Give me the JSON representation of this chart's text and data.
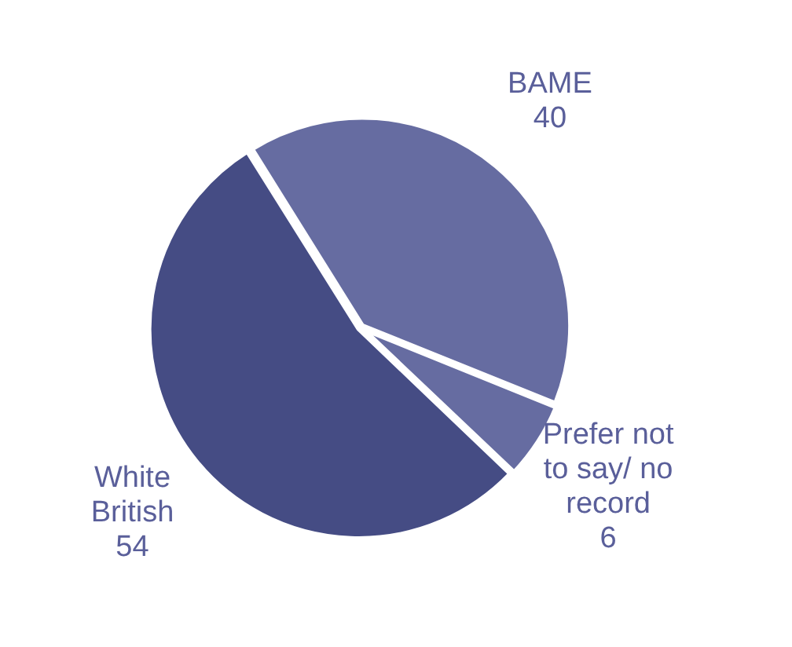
{
  "chart_data": {
    "type": "pie",
    "categories": [
      "BAME",
      "Prefer not to say/ no record",
      "White British"
    ],
    "values": [
      40,
      6,
      54
    ],
    "colors": [
      "#666ca1",
      "#666ca1",
      "#454c84"
    ],
    "data_labels": true,
    "legend": false
  }
}
